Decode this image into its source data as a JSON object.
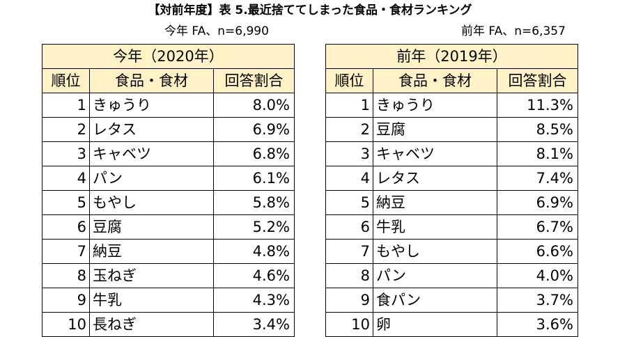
{
  "title": "【対前年度】表 5.最近捨ててしまった食品・食材ランキング",
  "this_year": {
    "sample": "今年 FA、n=6,990",
    "year_label": "今年（2020年）",
    "headers": {
      "rank": "順位",
      "item": "食品・食材",
      "rate": "回答割合"
    },
    "rows": [
      {
        "rank": "1",
        "item": "きゅうり",
        "rate": "8.0%"
      },
      {
        "rank": "2",
        "item": "レタス",
        "rate": "6.9%"
      },
      {
        "rank": "3",
        "item": "キャベツ",
        "rate": "6.8%"
      },
      {
        "rank": "4",
        "item": "パン",
        "rate": "6.1%"
      },
      {
        "rank": "5",
        "item": "もやし",
        "rate": "5.8%"
      },
      {
        "rank": "6",
        "item": "豆腐",
        "rate": "5.2%"
      },
      {
        "rank": "7",
        "item": "納豆",
        "rate": "4.8%"
      },
      {
        "rank": "8",
        "item": "玉ねぎ",
        "rate": "4.6%"
      },
      {
        "rank": "9",
        "item": "牛乳",
        "rate": "4.3%"
      },
      {
        "rank": "10",
        "item": "長ねぎ",
        "rate": "3.4%"
      }
    ]
  },
  "last_year": {
    "sample": "前年 FA、n=6,357",
    "year_label": "前年（2019年）",
    "headers": {
      "rank": "順位",
      "item": "食品・食材",
      "rate": "回答割合"
    },
    "rows": [
      {
        "rank": "1",
        "item": "きゅうり",
        "rate": "11.3%"
      },
      {
        "rank": "2",
        "item": "豆腐",
        "rate": "8.5%"
      },
      {
        "rank": "3",
        "item": "キャベツ",
        "rate": "8.1%"
      },
      {
        "rank": "4",
        "item": "レタス",
        "rate": "7.4%"
      },
      {
        "rank": "5",
        "item": "納豆",
        "rate": "6.9%"
      },
      {
        "rank": "6",
        "item": "牛乳",
        "rate": "6.7%"
      },
      {
        "rank": "7",
        "item": "もやし",
        "rate": "6.6%"
      },
      {
        "rank": "8",
        "item": "パン",
        "rate": "4.0%"
      },
      {
        "rank": "9",
        "item": "食パン",
        "rate": "3.7%"
      },
      {
        "rank": "10",
        "item": "卵",
        "rate": "3.6%"
      }
    ]
  },
  "colors": {
    "header_fill": "#fff2c6",
    "border": "#000000"
  }
}
